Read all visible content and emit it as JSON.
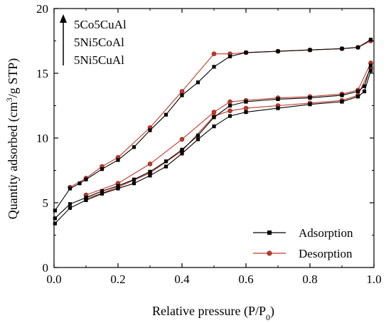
{
  "chart_data": {
    "type": "line",
    "xlabel": "Relative pressure (P/P",
    "xlabel_sub": "0",
    "xlabel_end": ")",
    "ylabel_pre": "Quantity adsorbed (cm",
    "ylabel_sup": "3",
    "ylabel_post": "/g STP)",
    "xlim": [
      0.0,
      1.0
    ],
    "ylim": [
      0,
      20
    ],
    "xticks": [
      "0.0",
      "0.2",
      "0.4",
      "0.6",
      "0.8",
      "1.0"
    ],
    "yticks": [
      "0",
      "5",
      "10",
      "15",
      "20"
    ],
    "grid": false,
    "annotations": {
      "arrow_labels": [
        "5Co5CuAl",
        "5Ni5CoAl",
        "5Ni5CuAl"
      ],
      "note": "arrow points upward alongside sample labels"
    },
    "legend": {
      "placement": "bottom-right",
      "entries": [
        {
          "name": "Adsorption",
          "color": "#000000",
          "marker": "square"
        },
        {
          "name": "Desorption",
          "color": "#c0392b",
          "marker": "circle"
        }
      ]
    },
    "series": [
      {
        "name": "Adsorption",
        "sample": "5Co5CuAl",
        "color": "#000000",
        "marker": "square",
        "points": [
          [
            0.003,
            4.4
          ],
          [
            0.05,
            6.1
          ],
          [
            0.08,
            6.5
          ],
          [
            0.1,
            6.8
          ],
          [
            0.15,
            7.6
          ],
          [
            0.2,
            8.3
          ],
          [
            0.25,
            9.3
          ],
          [
            0.3,
            10.6
          ],
          [
            0.35,
            11.8
          ],
          [
            0.4,
            13.3
          ],
          [
            0.45,
            14.3
          ],
          [
            0.5,
            15.5
          ],
          [
            0.55,
            16.3
          ],
          [
            0.6,
            16.6
          ],
          [
            0.7,
            16.7
          ],
          [
            0.8,
            16.8
          ],
          [
            0.9,
            16.9
          ],
          [
            0.95,
            17.0
          ],
          [
            0.99,
            17.6
          ]
        ]
      },
      {
        "name": "Desorption",
        "sample": "5Co5CuAl",
        "color": "#c0392b",
        "marker": "circle",
        "points": [
          [
            0.99,
            17.5
          ],
          [
            0.95,
            17.0
          ],
          [
            0.9,
            16.9
          ],
          [
            0.8,
            16.8
          ],
          [
            0.7,
            16.7
          ],
          [
            0.6,
            16.6
          ],
          [
            0.55,
            16.5
          ],
          [
            0.5,
            16.5
          ],
          [
            0.4,
            13.6
          ],
          [
            0.3,
            10.8
          ],
          [
            0.2,
            8.5
          ],
          [
            0.15,
            7.8
          ],
          [
            0.1,
            6.9
          ],
          [
            0.05,
            6.2
          ]
        ]
      },
      {
        "name": "Adsorption",
        "sample": "5Ni5CoAl",
        "color": "#000000",
        "marker": "square",
        "points": [
          [
            0.003,
            3.8
          ],
          [
            0.05,
            4.9
          ],
          [
            0.1,
            5.4
          ],
          [
            0.15,
            5.9
          ],
          [
            0.2,
            6.3
          ],
          [
            0.25,
            6.8
          ],
          [
            0.3,
            7.4
          ],
          [
            0.35,
            8.2
          ],
          [
            0.4,
            9.1
          ],
          [
            0.45,
            10.2
          ],
          [
            0.5,
            11.6
          ],
          [
            0.55,
            12.5
          ],
          [
            0.6,
            12.8
          ],
          [
            0.7,
            13.0
          ],
          [
            0.8,
            13.1
          ],
          [
            0.9,
            13.3
          ],
          [
            0.95,
            13.6
          ],
          [
            0.97,
            14.0
          ],
          [
            0.99,
            15.6
          ]
        ]
      },
      {
        "name": "Desorption",
        "sample": "5Ni5CoAl",
        "color": "#c0392b",
        "marker": "circle",
        "points": [
          [
            0.99,
            15.8
          ],
          [
            0.95,
            13.7
          ],
          [
            0.9,
            13.4
          ],
          [
            0.8,
            13.2
          ],
          [
            0.7,
            13.1
          ],
          [
            0.6,
            12.9
          ],
          [
            0.55,
            12.8
          ],
          [
            0.5,
            12.0
          ],
          [
            0.4,
            9.9
          ],
          [
            0.3,
            8.0
          ],
          [
            0.2,
            6.5
          ],
          [
            0.1,
            5.6
          ]
        ]
      },
      {
        "name": "Adsorption",
        "sample": "5Ni5CuAl",
        "color": "#000000",
        "marker": "square",
        "points": [
          [
            0.003,
            3.4
          ],
          [
            0.05,
            4.6
          ],
          [
            0.1,
            5.2
          ],
          [
            0.15,
            5.7
          ],
          [
            0.2,
            6.1
          ],
          [
            0.25,
            6.5
          ],
          [
            0.3,
            7.1
          ],
          [
            0.35,
            7.8
          ],
          [
            0.4,
            8.8
          ],
          [
            0.45,
            9.9
          ],
          [
            0.5,
            10.9
          ],
          [
            0.55,
            11.7
          ],
          [
            0.6,
            12.0
          ],
          [
            0.7,
            12.3
          ],
          [
            0.8,
            12.6
          ],
          [
            0.9,
            12.8
          ],
          [
            0.95,
            13.2
          ],
          [
            0.97,
            13.6
          ],
          [
            0.99,
            15.2
          ]
        ]
      },
      {
        "name": "Desorption",
        "sample": "5Ni5CuAl",
        "color": "#c0392b",
        "marker": "circle",
        "points": [
          [
            0.99,
            15.4
          ],
          [
            0.95,
            13.3
          ],
          [
            0.9,
            12.9
          ],
          [
            0.8,
            12.7
          ],
          [
            0.7,
            12.5
          ],
          [
            0.6,
            12.3
          ],
          [
            0.55,
            12.1
          ],
          [
            0.5,
            11.7
          ],
          [
            0.4,
            9.0
          ],
          [
            0.3,
            7.3
          ],
          [
            0.2,
            6.2
          ],
          [
            0.1,
            5.3
          ]
        ]
      }
    ]
  }
}
